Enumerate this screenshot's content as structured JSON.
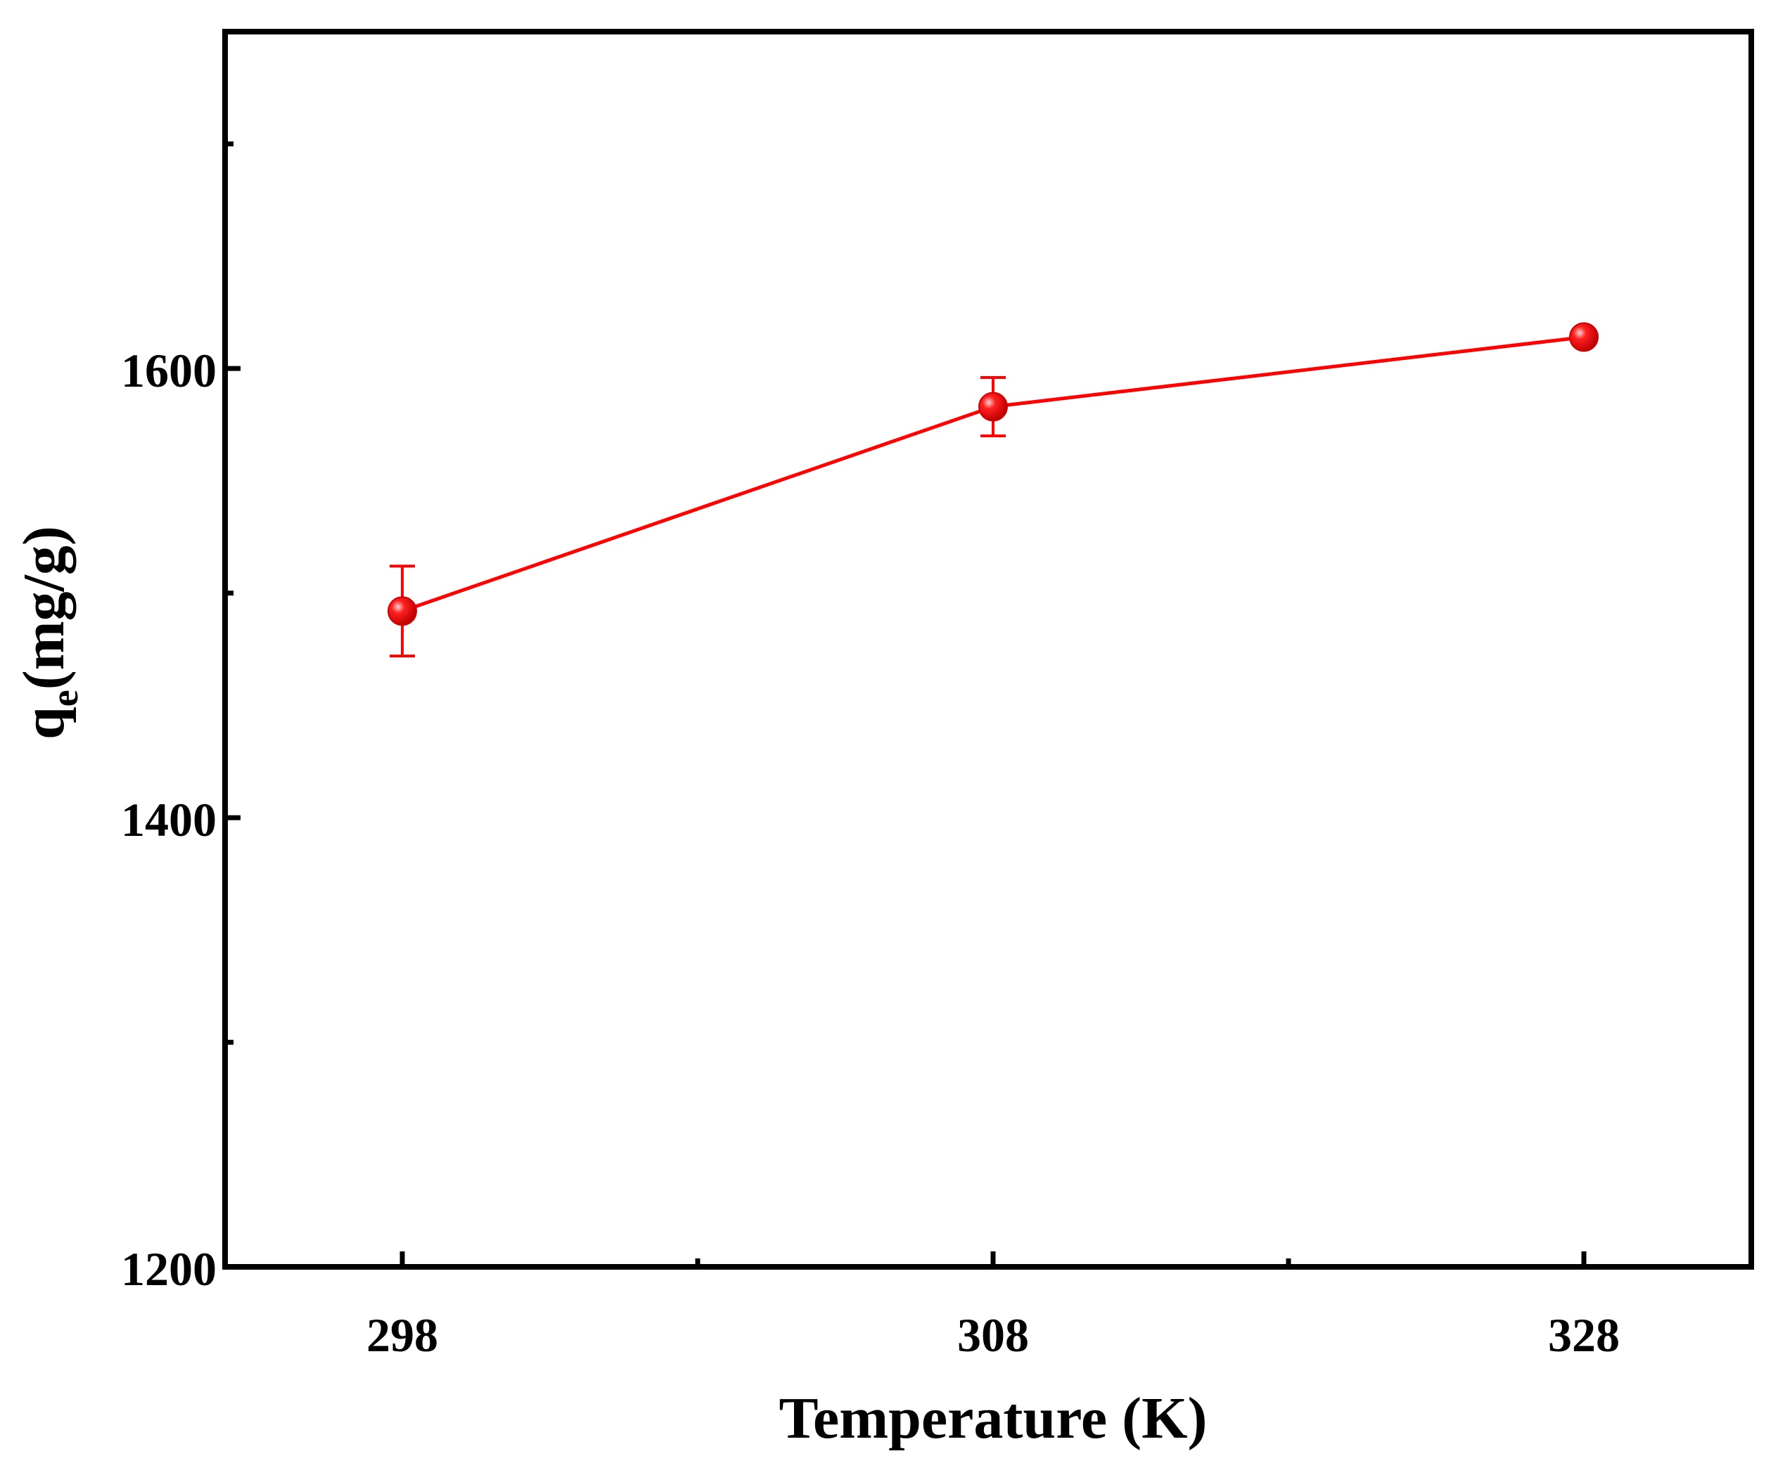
{
  "chart_data": {
    "type": "line",
    "title": "",
    "xlabel": "Temperature (K)",
    "ylabel": {
      "main": "q",
      "subscript": "e",
      "unit": "(mg/g)"
    },
    "x_scale": "categorical",
    "categories": [
      "298",
      "308",
      "328"
    ],
    "series": [
      {
        "color": "#ff0000",
        "marker": "circle",
        "values": [
          1492,
          1583,
          1614
        ],
        "error": [
          20,
          13,
          0
        ]
      }
    ],
    "ylim": [
      1200,
      1750
    ],
    "y_major_ticks": [
      1200,
      1400,
      1600
    ],
    "y_major_tick_labels": [
      "1200",
      "1400",
      "1600"
    ],
    "y_minor_ticks": [
      1300,
      1500,
      1700
    ],
    "x_minor_ticks_between": true,
    "grid": false,
    "legend": "none"
  }
}
